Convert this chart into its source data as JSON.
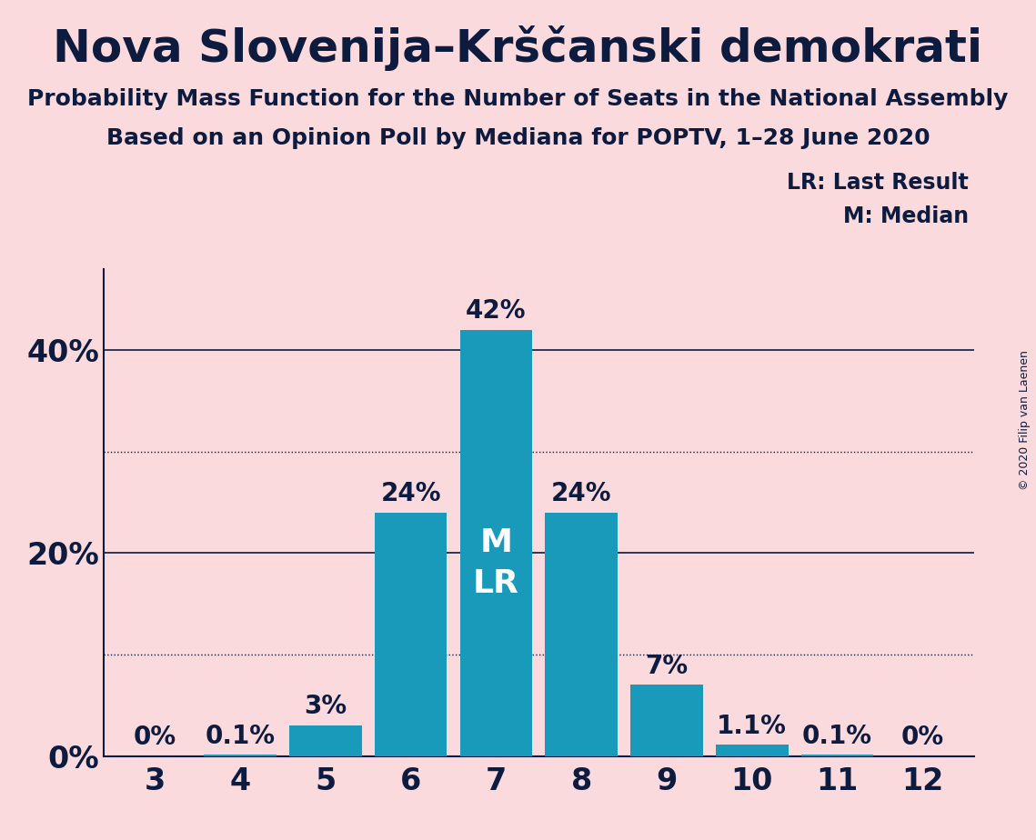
{
  "title": "Nova Slovenija–Krščanski demokrati",
  "subtitle1": "Probability Mass Function for the Number of Seats in the National Assembly",
  "subtitle2": "Based on an Opinion Poll by Mediana for POPTV, 1–28 June 2020",
  "copyright": "© 2020 Filip van Laenen",
  "categories": [
    3,
    4,
    5,
    6,
    7,
    8,
    9,
    10,
    11,
    12
  ],
  "values": [
    0.0,
    0.1,
    3.0,
    24.0,
    42.0,
    24.0,
    7.0,
    1.1,
    0.1,
    0.0
  ],
  "labels": [
    "0%",
    "0.1%",
    "3%",
    "24%",
    "42%",
    "24%",
    "7%",
    "1.1%",
    "0.1%",
    "0%"
  ],
  "bar_color": "#1a9aba",
  "background_color": "#fadadd",
  "text_color": "#0d1b3e",
  "white_text_color": "#ffffff",
  "title_fontsize": 36,
  "subtitle_fontsize": 18,
  "label_fontsize": 20,
  "axis_fontsize": 24,
  "ytick_labels": [
    "0%",
    "20%",
    "40%"
  ],
  "ytick_values": [
    0,
    20,
    40
  ],
  "ylim": [
    0,
    48
  ],
  "median_bar": 7,
  "last_result_bar": 7,
  "legend_text1": "LR: Last Result",
  "legend_text2": "M: Median",
  "solid_lines": [
    40,
    20
  ],
  "dotted_lines": [
    30,
    10
  ]
}
